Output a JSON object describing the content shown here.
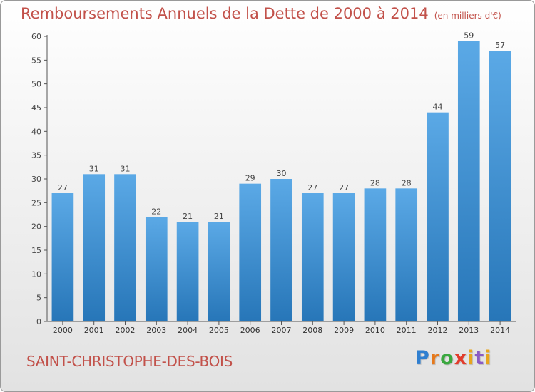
{
  "title": "Remboursements Annuels de la Dette de 2000 à 2014",
  "units": "(en milliers d'€)",
  "commune": "SAINT-CHRISTOPHE-DES-BOIS",
  "brand": "Proxiti",
  "colors": {
    "title": "#c2514a",
    "bar_top": "#5ba9e6",
    "bar_bottom": "#2776b8"
  },
  "chart_data": {
    "type": "bar",
    "categories": [
      "2000",
      "2001",
      "2002",
      "2003",
      "2004",
      "2005",
      "2006",
      "2007",
      "2008",
      "2009",
      "2010",
      "2011",
      "2012",
      "2013",
      "2014"
    ],
    "values": [
      27,
      31,
      31,
      22,
      21,
      21,
      29,
      30,
      27,
      27,
      28,
      28,
      44,
      59,
      57
    ],
    "ylim": [
      0,
      60
    ],
    "yticks": [
      0,
      5,
      10,
      15,
      20,
      25,
      30,
      35,
      40,
      45,
      50,
      55,
      60
    ],
    "grid": false,
    "data_labels": true
  }
}
